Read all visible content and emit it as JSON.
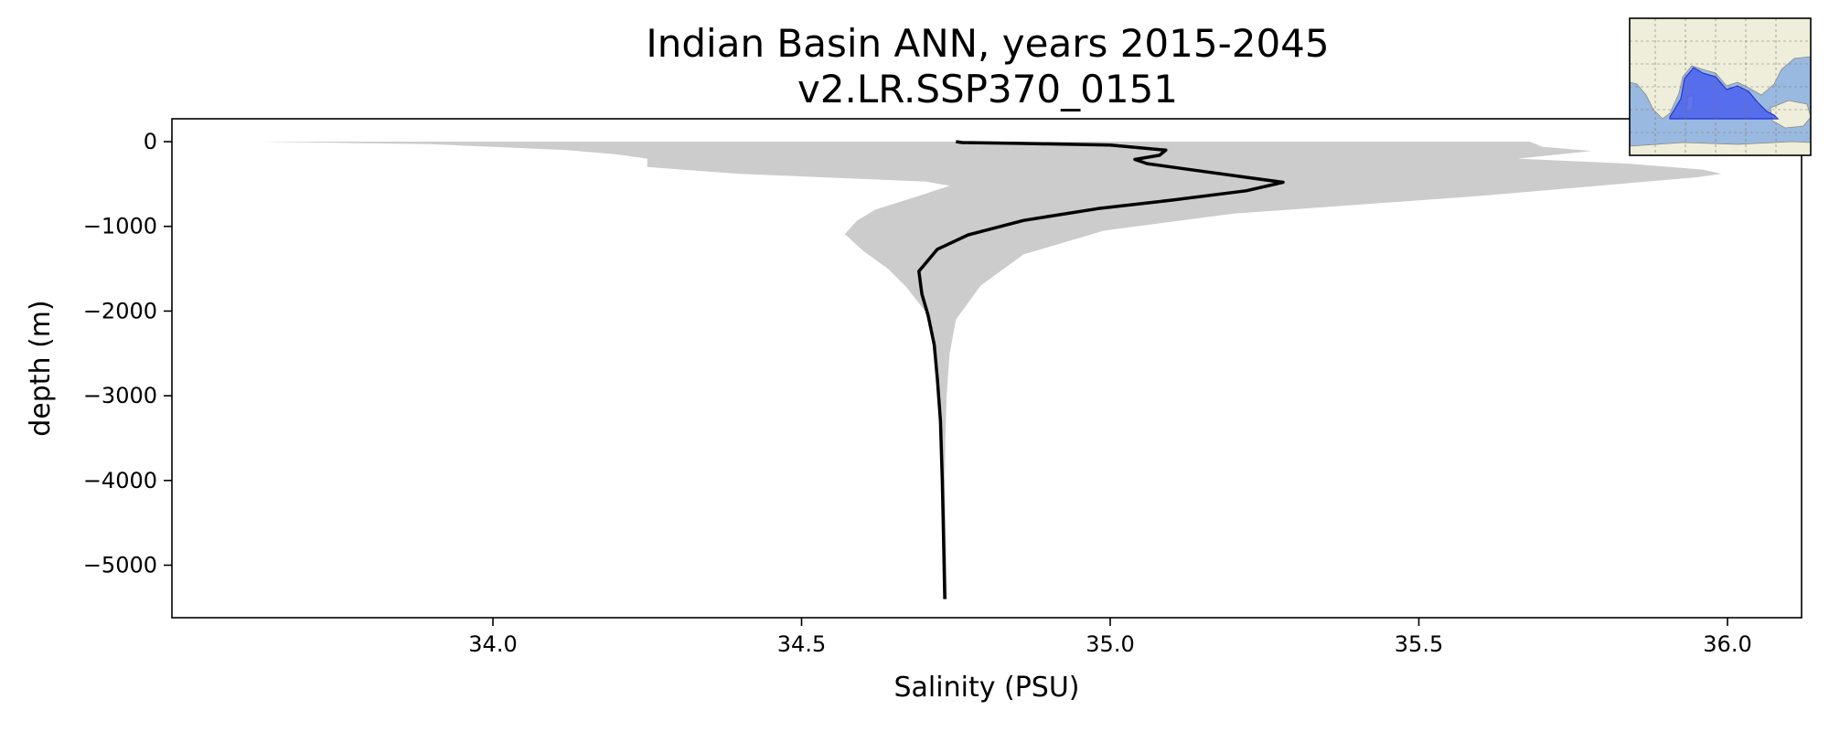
{
  "chart_data": {
    "type": "line",
    "title": "Indian Basin ANN, years 2015-2045",
    "subtitle": "v2.LR.SSP370_0151",
    "xlabel": "Salinity (PSU)",
    "ylabel": "depth (m)",
    "xlim": [
      33.48,
      36.12
    ],
    "ylim": [
      -5620,
      270
    ],
    "xticks": [
      34.0,
      34.5,
      35.0,
      35.5,
      36.0
    ],
    "xtick_labels": [
      "34.0",
      "34.5",
      "35.0",
      "35.5",
      "36.0"
    ],
    "yticks": [
      0,
      -1000,
      -2000,
      -3000,
      -4000,
      -5000
    ],
    "ytick_labels": [
      "0",
      "−1000",
      "−2000",
      "−3000",
      "−4000",
      "−5000"
    ],
    "grid": false,
    "colors": {
      "mean_line": "#000000",
      "range_fill": "#cccccc",
      "basin_highlight": "#4a5ff0",
      "map_ocean": "#9ab9e0",
      "map_land": "#efeedb"
    },
    "series": [
      {
        "kind": "mean",
        "points": [
          [
            34.75,
            0
          ],
          [
            34.76,
            -10
          ],
          [
            34.85,
            -20
          ],
          [
            35.0,
            -40
          ],
          [
            35.09,
            -100
          ],
          [
            35.08,
            -160
          ],
          [
            35.04,
            -210
          ],
          [
            35.06,
            -260
          ],
          [
            35.11,
            -310
          ],
          [
            35.22,
            -420
          ],
          [
            35.28,
            -480
          ],
          [
            35.22,
            -580
          ],
          [
            35.1,
            -690
          ],
          [
            34.98,
            -790
          ],
          [
            34.86,
            -930
          ],
          [
            34.77,
            -1100
          ],
          [
            34.72,
            -1270
          ],
          [
            34.69,
            -1530
          ],
          [
            34.695,
            -1800
          ],
          [
            34.705,
            -2050
          ],
          [
            34.715,
            -2400
          ],
          [
            34.72,
            -2800
          ],
          [
            34.725,
            -3300
          ],
          [
            34.728,
            -4000
          ],
          [
            34.73,
            -4700
          ],
          [
            34.732,
            -5400
          ]
        ]
      },
      {
        "kind": "range",
        "min": [
          [
            33.62,
            0
          ],
          [
            33.9,
            -30
          ],
          [
            34.12,
            -100
          ],
          [
            34.2,
            -150
          ],
          [
            34.25,
            -200
          ],
          [
            34.25,
            -300
          ],
          [
            34.4,
            -380
          ],
          [
            34.7,
            -470
          ],
          [
            34.74,
            -520
          ],
          [
            34.69,
            -640
          ],
          [
            34.62,
            -800
          ],
          [
            34.59,
            -930
          ],
          [
            34.57,
            -1090
          ],
          [
            34.6,
            -1290
          ],
          [
            34.64,
            -1500
          ],
          [
            34.67,
            -1720
          ],
          [
            34.7,
            -2000
          ],
          [
            34.715,
            -2400
          ],
          [
            34.72,
            -2800
          ],
          [
            34.725,
            -3300
          ],
          [
            34.727,
            -4000
          ],
          [
            34.728,
            -4700
          ],
          [
            34.73,
            -5400
          ]
        ],
        "max": [
          [
            35.68,
            0
          ],
          [
            35.7,
            -60
          ],
          [
            35.78,
            -110
          ],
          [
            35.66,
            -200
          ],
          [
            35.84,
            -260
          ],
          [
            35.96,
            -330
          ],
          [
            35.99,
            -380
          ],
          [
            35.95,
            -420
          ],
          [
            35.6,
            -640
          ],
          [
            35.2,
            -850
          ],
          [
            34.99,
            -1050
          ],
          [
            34.86,
            -1330
          ],
          [
            34.79,
            -1700
          ],
          [
            34.75,
            -2100
          ],
          [
            34.74,
            -2500
          ],
          [
            34.735,
            -3000
          ],
          [
            34.733,
            -3500
          ],
          [
            34.732,
            -4000
          ],
          [
            34.734,
            -4700
          ],
          [
            34.736,
            -5400
          ]
        ]
      }
    ]
  }
}
